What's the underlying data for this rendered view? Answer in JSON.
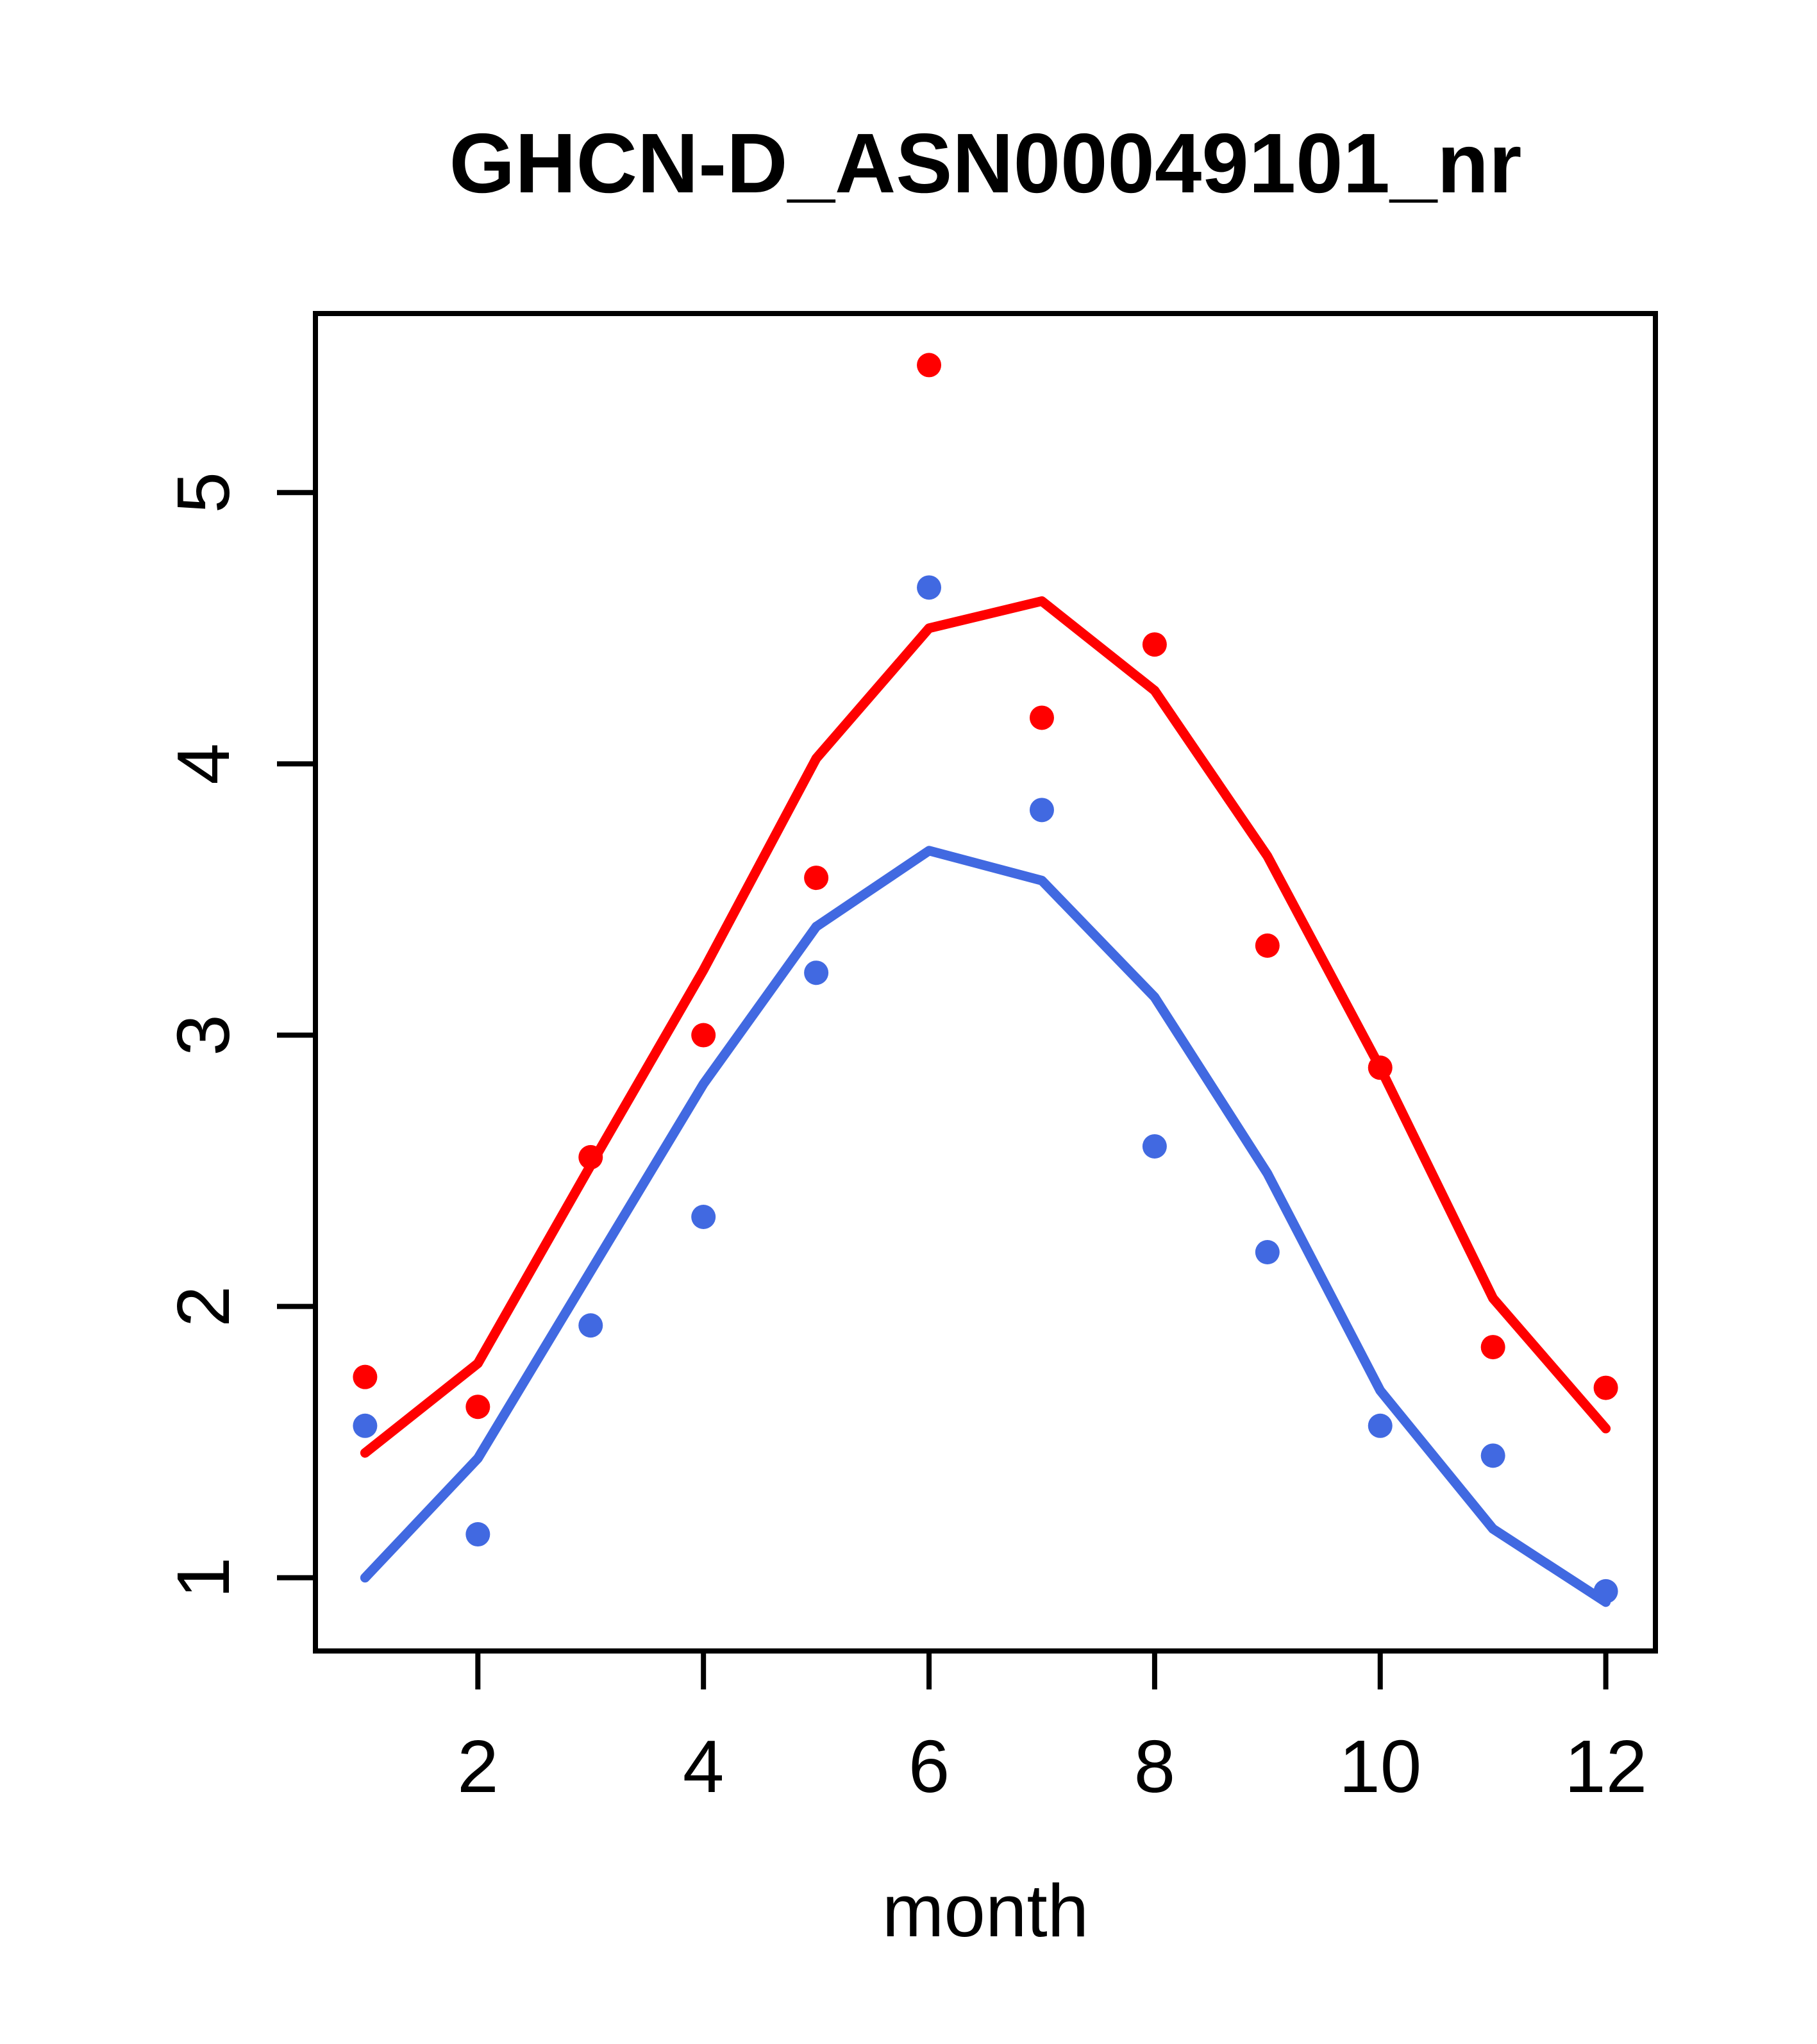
{
  "page": {
    "background": "#ffffff"
  },
  "chart_data": {
    "type": "scatter",
    "title": "GHCN-D_ASN00049101_nr",
    "xlabel": "month",
    "ylabel": "",
    "x": [
      1,
      2,
      3,
      4,
      5,
      6,
      7,
      8,
      9,
      10,
      11,
      12
    ],
    "xlim": [
      0.56,
      12.44
    ],
    "ylim": [
      0.73,
      5.66
    ],
    "x_ticks": [
      2,
      4,
      6,
      8,
      10,
      12
    ],
    "y_ticks": [
      1,
      2,
      3,
      4,
      5
    ],
    "grid": false,
    "legend": false,
    "colors": {
      "red": "#ff0000",
      "blue": "#4169e1"
    },
    "series": [
      {
        "name": "red-points",
        "kind": "points",
        "color": "#ff0000",
        "values": [
          1.74,
          1.63,
          2.55,
          3.0,
          3.58,
          5.47,
          4.17,
          4.44,
          3.33,
          2.88,
          1.85,
          1.7
        ]
      },
      {
        "name": "blue-points",
        "kind": "points",
        "color": "#4169e1",
        "values": [
          1.56,
          1.16,
          1.93,
          2.33,
          3.23,
          4.65,
          3.83,
          2.59,
          2.2,
          1.56,
          1.45,
          0.95
        ]
      },
      {
        "name": "red-line",
        "kind": "line",
        "color": "#ff0000",
        "values": [
          1.46,
          1.79,
          2.52,
          3.24,
          4.02,
          4.5,
          4.6,
          4.27,
          3.66,
          2.88,
          2.03,
          1.55
        ]
      },
      {
        "name": "blue-line",
        "kind": "line",
        "color": "#4169e1",
        "values": [
          1.0,
          1.44,
          2.13,
          2.82,
          3.4,
          3.68,
          3.57,
          3.14,
          2.49,
          1.69,
          1.18,
          0.91
        ]
      }
    ]
  }
}
